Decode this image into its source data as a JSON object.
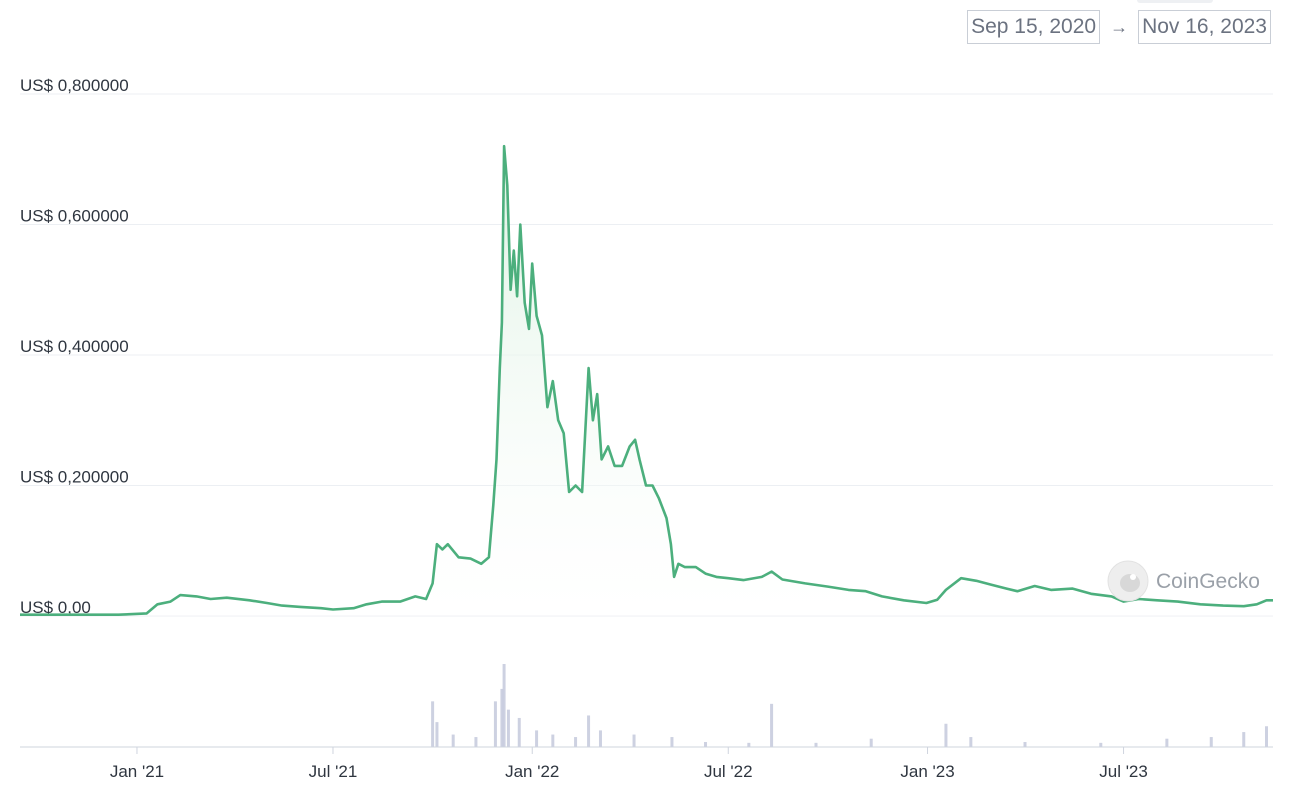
{
  "date_range": {
    "start": "Sep 15, 2020",
    "arrow": "→",
    "end": "Nov 16, 2023"
  },
  "watermark": "CoinGecko",
  "colors": {
    "line": "#4caf7d",
    "area_top": "#d9f0df",
    "grid": "#eceff3",
    "volume": "#c4c9dc"
  },
  "chart_data": {
    "type": "area",
    "title": "",
    "xlabel": "",
    "ylabel": "",
    "ylim": [
      0,
      0.8
    ],
    "y_ticks": [
      {
        "value": 0,
        "label": "US$ 0,00"
      },
      {
        "value": 0.2,
        "label": "US$ 0,200000"
      },
      {
        "value": 0.4,
        "label": "US$ 0,400000"
      },
      {
        "value": 0.6,
        "label": "US$ 0,600000"
      },
      {
        "value": 0.8,
        "label": "US$ 0,800000"
      }
    ],
    "x_ticks": [
      {
        "date": "2021-01-01",
        "label": "Jan '21"
      },
      {
        "date": "2021-07-01",
        "label": "Jul '21"
      },
      {
        "date": "2022-01-01",
        "label": "Jan '22"
      },
      {
        "date": "2022-07-01",
        "label": "Jul '22"
      },
      {
        "date": "2023-01-01",
        "label": "Jan '23"
      },
      {
        "date": "2023-07-01",
        "label": "Jul '23"
      }
    ],
    "x_range": [
      "2020-09-15",
      "2023-11-16"
    ],
    "series": [
      {
        "values": [
          [
            "2020-09-15",
            0.002
          ],
          [
            "2020-11-15",
            0.002
          ],
          [
            "2020-12-15",
            0.002
          ],
          [
            "2021-01-10",
            0.004
          ],
          [
            "2021-01-20",
            0.018
          ],
          [
            "2021-02-01",
            0.022
          ],
          [
            "2021-02-10",
            0.032
          ],
          [
            "2021-02-25",
            0.03
          ],
          [
            "2021-03-10",
            0.026
          ],
          [
            "2021-03-25",
            0.028
          ],
          [
            "2021-04-15",
            0.024
          ],
          [
            "2021-05-01",
            0.02
          ],
          [
            "2021-05-15",
            0.016
          ],
          [
            "2021-06-01",
            0.014
          ],
          [
            "2021-06-20",
            0.012
          ],
          [
            "2021-07-01",
            0.01
          ],
          [
            "2021-07-20",
            0.012
          ],
          [
            "2021-08-01",
            0.018
          ],
          [
            "2021-08-15",
            0.022
          ],
          [
            "2021-09-01",
            0.022
          ],
          [
            "2021-09-15",
            0.03
          ],
          [
            "2021-09-25",
            0.026
          ],
          [
            "2021-10-01",
            0.05
          ],
          [
            "2021-10-05",
            0.11
          ],
          [
            "2021-10-10",
            0.102
          ],
          [
            "2021-10-15",
            0.11
          ],
          [
            "2021-10-25",
            0.09
          ],
          [
            "2021-11-05",
            0.088
          ],
          [
            "2021-11-15",
            0.08
          ],
          [
            "2021-11-22",
            0.09
          ],
          [
            "2021-11-26",
            0.17
          ],
          [
            "2021-11-29",
            0.24
          ],
          [
            "2021-12-02",
            0.38
          ],
          [
            "2021-12-04",
            0.45
          ],
          [
            "2021-12-06",
            0.72
          ],
          [
            "2021-12-09",
            0.66
          ],
          [
            "2021-12-12",
            0.5
          ],
          [
            "2021-12-15",
            0.56
          ],
          [
            "2021-12-18",
            0.49
          ],
          [
            "2021-12-21",
            0.6
          ],
          [
            "2021-12-25",
            0.48
          ],
          [
            "2021-12-29",
            0.44
          ],
          [
            "2022-01-01",
            0.54
          ],
          [
            "2022-01-05",
            0.46
          ],
          [
            "2022-01-10",
            0.43
          ],
          [
            "2022-01-15",
            0.32
          ],
          [
            "2022-01-20",
            0.36
          ],
          [
            "2022-01-25",
            0.3
          ],
          [
            "2022-01-30",
            0.28
          ],
          [
            "2022-02-04",
            0.19
          ],
          [
            "2022-02-10",
            0.2
          ],
          [
            "2022-02-16",
            0.19
          ],
          [
            "2022-02-22",
            0.38
          ],
          [
            "2022-02-26",
            0.3
          ],
          [
            "2022-03-02",
            0.34
          ],
          [
            "2022-03-06",
            0.24
          ],
          [
            "2022-03-12",
            0.26
          ],
          [
            "2022-03-18",
            0.23
          ],
          [
            "2022-03-25",
            0.23
          ],
          [
            "2022-04-01",
            0.26
          ],
          [
            "2022-04-06",
            0.27
          ],
          [
            "2022-04-10",
            0.24
          ],
          [
            "2022-04-16",
            0.2
          ],
          [
            "2022-04-22",
            0.2
          ],
          [
            "2022-04-28",
            0.18
          ],
          [
            "2022-05-05",
            0.15
          ],
          [
            "2022-05-09",
            0.11
          ],
          [
            "2022-05-12",
            0.06
          ],
          [
            "2022-05-16",
            0.08
          ],
          [
            "2022-05-22",
            0.075
          ],
          [
            "2022-06-01",
            0.075
          ],
          [
            "2022-06-10",
            0.065
          ],
          [
            "2022-06-20",
            0.06
          ],
          [
            "2022-07-01",
            0.058
          ],
          [
            "2022-07-15",
            0.055
          ],
          [
            "2022-08-01",
            0.06
          ],
          [
            "2022-08-10",
            0.068
          ],
          [
            "2022-08-20",
            0.056
          ],
          [
            "2022-09-10",
            0.05
          ],
          [
            "2022-10-01",
            0.045
          ],
          [
            "2022-10-20",
            0.04
          ],
          [
            "2022-11-05",
            0.038
          ],
          [
            "2022-11-20",
            0.03
          ],
          [
            "2022-12-10",
            0.024
          ],
          [
            "2022-12-31",
            0.02
          ],
          [
            "2023-01-10",
            0.025
          ],
          [
            "2023-01-18",
            0.04
          ],
          [
            "2023-02-01",
            0.058
          ],
          [
            "2023-02-15",
            0.054
          ],
          [
            "2023-03-01",
            0.048
          ],
          [
            "2023-03-15",
            0.042
          ],
          [
            "2023-03-25",
            0.038
          ],
          [
            "2023-04-10",
            0.046
          ],
          [
            "2023-04-25",
            0.04
          ],
          [
            "2023-05-15",
            0.042
          ],
          [
            "2023-06-01",
            0.034
          ],
          [
            "2023-06-20",
            0.03
          ],
          [
            "2023-07-01",
            0.022
          ],
          [
            "2023-07-15",
            0.026
          ],
          [
            "2023-08-01",
            0.024
          ],
          [
            "2023-08-20",
            0.022
          ],
          [
            "2023-09-10",
            0.018
          ],
          [
            "2023-10-01",
            0.016
          ],
          [
            "2023-10-20",
            0.015
          ],
          [
            "2023-11-01",
            0.018
          ],
          [
            "2023-11-10",
            0.024
          ],
          [
            "2023-11-16",
            0.024
          ]
        ]
      }
    ],
    "volume": [
      [
        "2021-10-01",
        0.55
      ],
      [
        "2021-10-05",
        0.3
      ],
      [
        "2021-10-20",
        0.15
      ],
      [
        "2021-11-10",
        0.12
      ],
      [
        "2021-11-28",
        0.55
      ],
      [
        "2021-12-04",
        0.7
      ],
      [
        "2021-12-06",
        1.0
      ],
      [
        "2021-12-10",
        0.45
      ],
      [
        "2021-12-20",
        0.35
      ],
      [
        "2022-01-05",
        0.2
      ],
      [
        "2022-01-20",
        0.15
      ],
      [
        "2022-02-10",
        0.12
      ],
      [
        "2022-02-22",
        0.38
      ],
      [
        "2022-03-05",
        0.2
      ],
      [
        "2022-04-05",
        0.15
      ],
      [
        "2022-05-10",
        0.12
      ],
      [
        "2022-06-10",
        0.06
      ],
      [
        "2022-07-20",
        0.05
      ],
      [
        "2022-08-10",
        0.52
      ],
      [
        "2022-09-20",
        0.05
      ],
      [
        "2022-11-10",
        0.1
      ],
      [
        "2023-01-18",
        0.28
      ],
      [
        "2023-02-10",
        0.12
      ],
      [
        "2023-04-01",
        0.06
      ],
      [
        "2023-06-10",
        0.05
      ],
      [
        "2023-08-10",
        0.1
      ],
      [
        "2023-09-20",
        0.12
      ],
      [
        "2023-10-20",
        0.18
      ],
      [
        "2023-11-10",
        0.25
      ]
    ]
  }
}
